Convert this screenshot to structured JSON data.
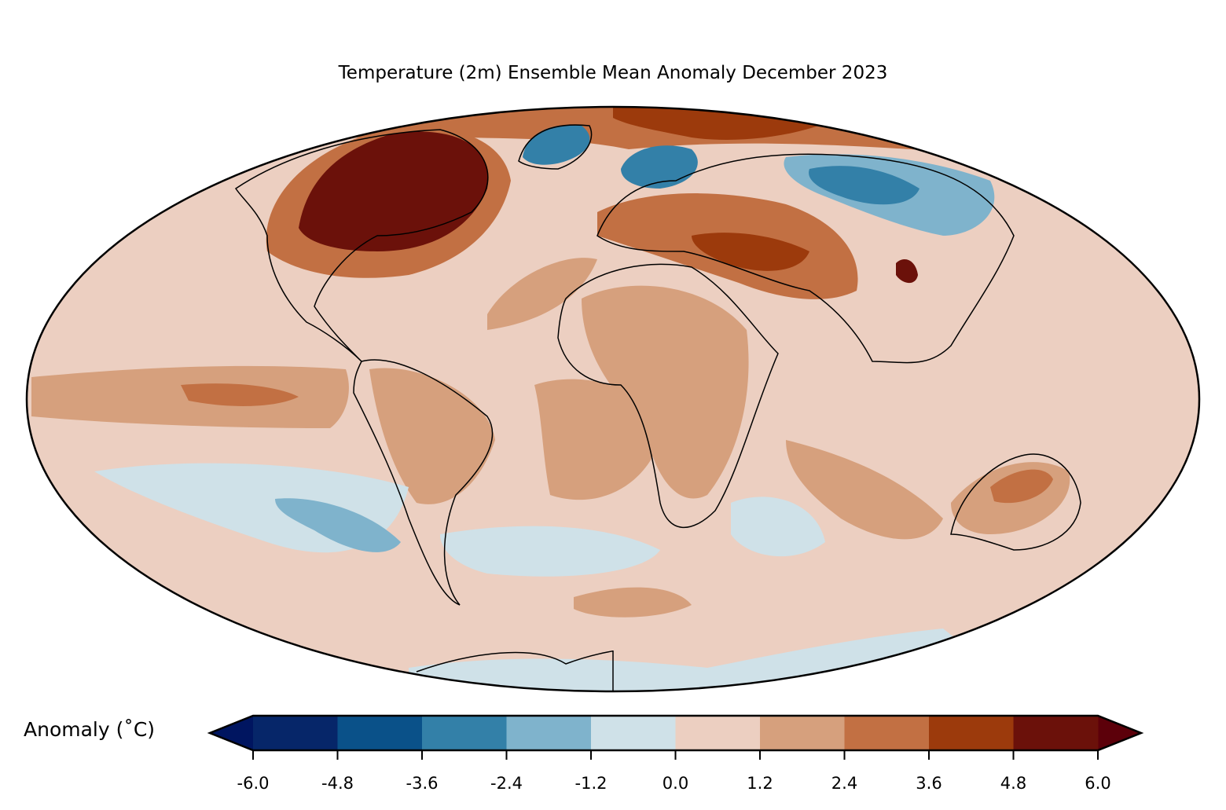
{
  "title": "Temperature (2m) Ensemble Mean Anomaly December 2023",
  "colorbar": {
    "label": "Anomaly (˚C)",
    "ticks": [
      "-6.0",
      "-4.8",
      "-3.6",
      "-2.4",
      "-1.2",
      "0.0",
      "1.2",
      "2.4",
      "3.6",
      "4.8",
      "6.0"
    ],
    "levels": [
      -6.0,
      -4.8,
      -3.6,
      -2.4,
      -1.2,
      0.0,
      1.2,
      2.4,
      3.6,
      4.8,
      6.0
    ],
    "colors": [
      "#062669",
      "#0a5189",
      "#3380a8",
      "#7fb3cc",
      "#cfe1e8",
      "#eccfc1",
      "#d6a07d",
      "#c27043",
      "#9c3a0c",
      "#6b110a"
    ],
    "extend_low_color": "#001560",
    "extend_high_color": "#5c000a"
  }
}
